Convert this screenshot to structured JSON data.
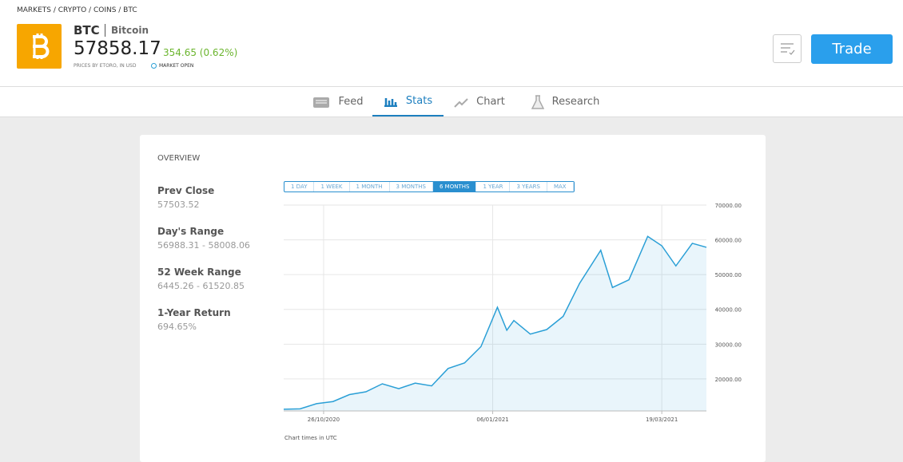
{
  "header": {
    "breadcrumb": "MARKETS / CRYPTO / COINS / BTC",
    "symbol": "BTC",
    "name": "Bitcoin",
    "price": "57858.17",
    "change": "354.65 (0.62%)",
    "source": "PRICES BY ETORO, IN USD",
    "status": "MARKET OPEN",
    "trade_button": "Trade"
  },
  "tabs": [
    "Feed",
    "Stats",
    "Chart",
    "Research"
  ],
  "overview": {
    "title": "OVERVIEW",
    "stats": [
      {
        "label": "Prev Close",
        "value": "57503.52"
      },
      {
        "label": "Day's Range",
        "value": "56988.31 - 58008.06"
      },
      {
        "label": "52 Week Range",
        "value": "6445.26 - 61520.85"
      },
      {
        "label": "1-Year Return",
        "value": "694.65%"
      }
    ]
  },
  "ranges": [
    "1 DAY",
    "1 WEEK",
    "1 MONTH",
    "3 MONTHS",
    "6 MONTHS",
    "1 YEAR",
    "3 YEARS",
    "MAX"
  ],
  "chart_data": {
    "type": "area",
    "color": "#2a9fd6",
    "x": [
      "09/10/2020",
      "16/10/2020",
      "23/10/2020",
      "30/10/2020",
      "06/11/2020",
      "13/11/2020",
      "20/11/2020",
      "27/11/2020",
      "04/12/2020",
      "11/12/2020",
      "18/12/2020",
      "25/12/2020",
      "01/01/2021",
      "08/01/2021",
      "12/01/2021",
      "15/01/2021",
      "22/01/2021",
      "29/01/2021",
      "05/02/2021",
      "12/02/2021",
      "21/02/2021",
      "26/02/2021",
      "05/03/2021",
      "13/03/2021",
      "19/03/2021",
      "25/03/2021",
      "01/04/2021",
      "07/04/2021"
    ],
    "values": [
      11300,
      11400,
      12900,
      13500,
      15500,
      16300,
      18600,
      17200,
      18800,
      18000,
      23000,
      24600,
      29300,
      40600,
      34000,
      36800,
      32900,
      34200,
      38000,
      47500,
      57000,
      46300,
      48500,
      61000,
      58300,
      52500,
      59000,
      57858
    ],
    "xlim": [
      "09/10/2020",
      "07/04/2021"
    ],
    "xticks": [
      "26/10/2020",
      "06/01/2021",
      "19/03/2021"
    ],
    "ylim": [
      10800,
      70000
    ],
    "yticks": [
      {
        "value": 20000,
        "label": "20000.00"
      },
      {
        "value": 30000,
        "label": "30000.00"
      },
      {
        "value": 40000,
        "label": "40000.00"
      },
      {
        "value": 50000,
        "label": "50000.00"
      },
      {
        "value": 60000,
        "label": "60000.00"
      },
      {
        "value": 70000,
        "label": "70000.00"
      }
    ],
    "grid": true,
    "note": "Chart times in UTC"
  }
}
